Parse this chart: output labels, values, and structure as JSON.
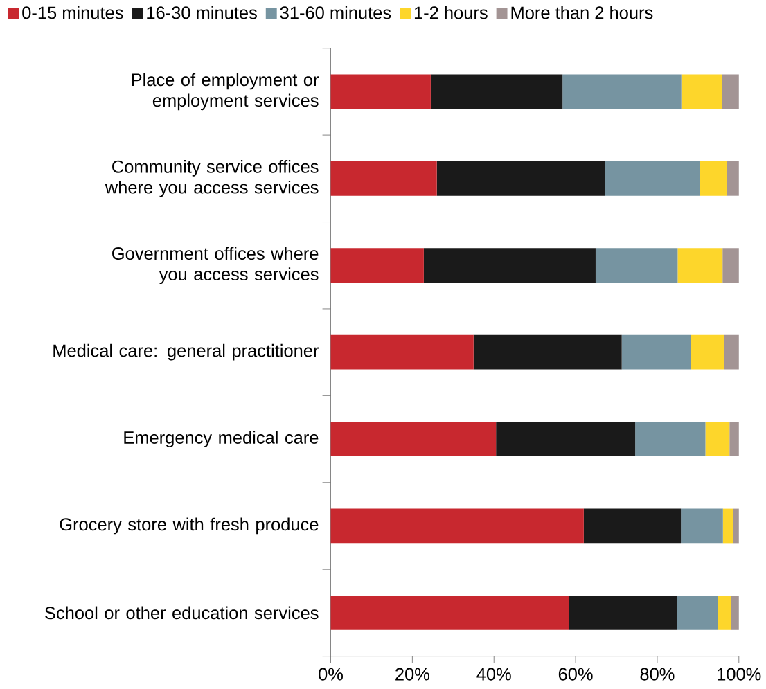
{
  "chart_data": {
    "type": "bar",
    "orientation": "horizontal",
    "stacked": true,
    "legend": "top",
    "categories": [
      "Place of employment or employment services",
      "Community service offices where you access services",
      "Government offices where you access services",
      "Medical care: general practitioner",
      "Emergency medical care",
      "Grocery store with fresh produce",
      "School or other education services"
    ],
    "series": [
      {
        "name": "0-15 minutes",
        "color": "#c8282f",
        "values": [
          24.5,
          26.0,
          22.8,
          35.0,
          40.5,
          62.0,
          58.3
        ]
      },
      {
        "name": "16-30 minutes",
        "color": "#1a1a1a",
        "values": [
          32.3,
          41.2,
          42.1,
          36.3,
          34.1,
          23.8,
          26.5
        ]
      },
      {
        "name": "31-60 minutes",
        "color": "#7694a1",
        "values": [
          29.1,
          23.3,
          20.1,
          16.9,
          17.2,
          10.3,
          10.1
        ]
      },
      {
        "name": "1-2 hours",
        "color": "#fdd62b",
        "values": [
          10.0,
          6.6,
          11.0,
          8.1,
          5.9,
          2.5,
          3.2
        ]
      },
      {
        "name": "More than 2 hours",
        "color": "#a39494",
        "values": [
          4.1,
          2.9,
          4.0,
          3.7,
          2.3,
          1.4,
          1.9
        ]
      }
    ],
    "xlim": [
      0,
      100
    ],
    "xticks": [
      {
        "value": 0,
        "label": "0%"
      },
      {
        "value": 20,
        "label": "20%"
      },
      {
        "value": 40,
        "label": "40%"
      },
      {
        "value": 60,
        "label": "60%"
      },
      {
        "value": 80,
        "label": "80%"
      },
      {
        "value": 100,
        "label": "100%"
      }
    ]
  }
}
